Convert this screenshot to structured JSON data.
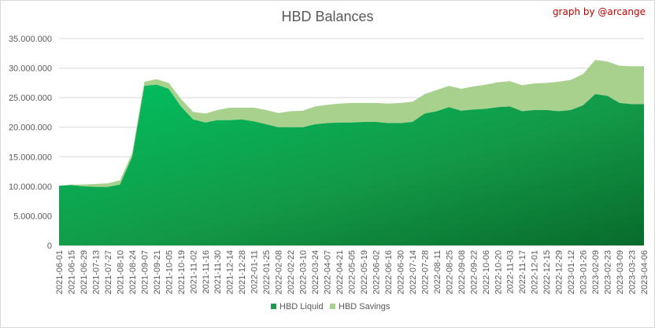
{
  "header": {
    "title": "HBD Balances",
    "credit": "graph by @arcange"
  },
  "chart_data": {
    "type": "area",
    "stacked": true,
    "title": "HBD Balances",
    "xlabel": "",
    "ylabel": "",
    "ylim": [
      0,
      35000000
    ],
    "y_ticks": [
      "0",
      "5.000.000",
      "10.000.000",
      "15.000.000",
      "20.000.000",
      "25.000.000",
      "30.000.000",
      "35.000.000"
    ],
    "grid": "horizontal",
    "legend_position": "bottom",
    "x_ticks": [
      "2021-06-01",
      "2021-06-15",
      "2021-06-29",
      "2021-07-13",
      "2021-07-27",
      "2021-08-10",
      "2021-08-24",
      "2021-09-07",
      "2021-09-21",
      "2021-10-05",
      "2021-10-19",
      "2021-11-02",
      "2021-11-16",
      "2021-11-30",
      "2021-12-14",
      "2021-12-28",
      "2022-01-11",
      "2022-01-25",
      "2022-02-08",
      "2022-02-22",
      "2022-03-10",
      "2022-03-24",
      "2022-04-07",
      "2022-04-21",
      "2022-05-05",
      "2022-05-19",
      "2022-06-02",
      "2022-06-16",
      "2022-06-30",
      "2022-07-14",
      "2022-07-28",
      "2022-08-11",
      "2022-08-25",
      "2022-09-08",
      "2022-09-22",
      "2022-10-06",
      "2022-10-20",
      "2022-11-03",
      "2022-11-17",
      "2022-12-01",
      "2022-12-15",
      "2022-12-29",
      "2023-01-12",
      "2023-01-26",
      "2023-02-09",
      "2023-02-23",
      "2023-03-09",
      "2023-03-23",
      "2023-04-06"
    ],
    "series": [
      {
        "name": "HBD Liquid",
        "color": "#1a9e4b",
        "values": [
          10100000,
          10200000,
          10000000,
          9900000,
          9900000,
          10300000,
          15000000,
          27000000,
          27200000,
          26500000,
          23500000,
          21300000,
          20800000,
          21200000,
          21200000,
          21300000,
          21000000,
          20500000,
          20000000,
          20000000,
          20000000,
          20500000,
          20700000,
          20800000,
          20800000,
          20900000,
          20900000,
          20700000,
          20700000,
          20900000,
          22300000,
          22700000,
          23400000,
          22800000,
          23000000,
          23100000,
          23400000,
          23500000,
          22700000,
          22900000,
          22900000,
          22700000,
          22900000,
          23700000,
          25600000,
          25300000,
          24100000,
          23900000,
          23900000
        ]
      },
      {
        "name": "HBD Savings",
        "color": "#a9d18e",
        "values": [
          0,
          100000,
          300000,
          500000,
          600000,
          700000,
          600000,
          700000,
          900000,
          1000000,
          1300000,
          1300000,
          1500000,
          1700000,
          2100000,
          2000000,
          2300000,
          2400000,
          2400000,
          2700000,
          2800000,
          3000000,
          3100000,
          3200000,
          3300000,
          3200000,
          3200000,
          3300000,
          3400000,
          3400000,
          3300000,
          3600000,
          3600000,
          3700000,
          3900000,
          4100000,
          4200000,
          4300000,
          4400000,
          4500000,
          4600000,
          5000000,
          5100000,
          5300000,
          5800000,
          5800000,
          6300000,
          6400000,
          6400000
        ]
      }
    ]
  }
}
